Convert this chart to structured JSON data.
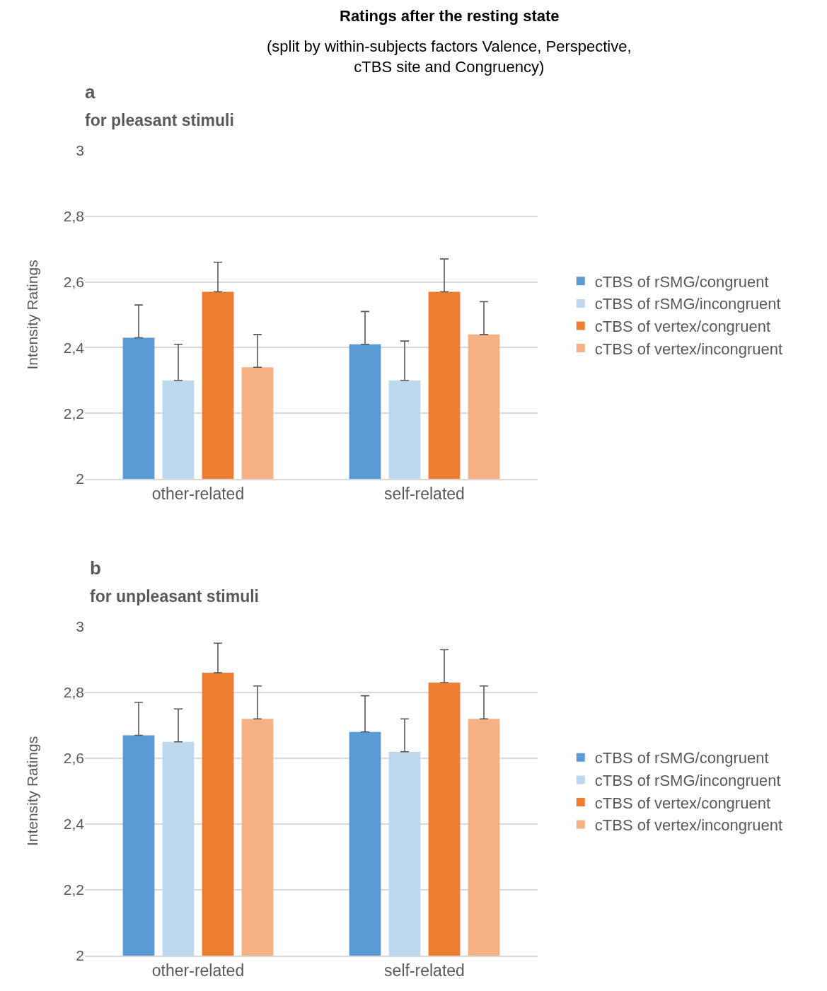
{
  "chart_data": [
    {
      "type": "bar",
      "title": "a",
      "subtitle": "for pleasant stimuli",
      "ylabel": "Intensity Ratings",
      "annotations": [
        "Ratings after the resting state",
        "(split by within-subjects factors Valence, Perspective,\ncTBS site and Congruency)"
      ],
      "categories": [
        "other-related",
        "self-related"
      ],
      "series": [
        {
          "name": "cTBS of rSMG/congruent",
          "color": "#5b9bd5",
          "values": [
            2.43,
            2.41
          ],
          "errors": [
            [
              2.43,
              2.53
            ],
            [
              2.41,
              2.51
            ]
          ]
        },
        {
          "name": "cTBS of rSMG/incongruent",
          "color": "#bdd7ee",
          "values": [
            2.3,
            2.3
          ],
          "errors": [
            [
              2.3,
              2.41
            ],
            [
              2.3,
              2.42
            ]
          ]
        },
        {
          "name": "cTBS of vertex/congruent",
          "color": "#ed7d31",
          "values": [
            2.57,
            2.57
          ],
          "errors": [
            [
              2.57,
              2.66
            ],
            [
              2.57,
              2.67
            ]
          ]
        },
        {
          "name": "cTBS of vertex/incongruent",
          "color": "#f4b183",
          "values": [
            2.34,
            2.44
          ],
          "errors": [
            [
              2.34,
              2.44
            ],
            [
              2.44,
              2.54
            ]
          ]
        }
      ],
      "ylim": [
        2,
        3
      ],
      "yticks": [
        2,
        {
          "value": 2.2,
          "label": "2,2"
        },
        {
          "value": 2.4,
          "label": "2,4"
        },
        {
          "value": 2.6,
          "label": "2,6"
        },
        {
          "value": 2.8,
          "label": "2,8"
        },
        3
      ],
      "grid": "y",
      "legend": "right"
    },
    {
      "type": "bar",
      "title": "b",
      "subtitle": "for unpleasant stimuli",
      "ylabel": "Intensity Ratings",
      "categories": [
        "other-related",
        "self-related"
      ],
      "series": [
        {
          "name": "cTBS of rSMG/congruent",
          "color": "#5b9bd5",
          "values": [
            2.67,
            2.68
          ],
          "errors": [
            [
              2.67,
              2.77
            ],
            [
              2.68,
              2.79
            ]
          ]
        },
        {
          "name": "cTBS of rSMG/incongruent",
          "color": "#bdd7ee",
          "values": [
            2.65,
            2.62
          ],
          "errors": [
            [
              2.65,
              2.75
            ],
            [
              2.62,
              2.72
            ]
          ]
        },
        {
          "name": "cTBS of vertex/congruent",
          "color": "#ed7d31",
          "values": [
            2.86,
            2.83
          ],
          "errors": [
            [
              2.86,
              2.95
            ],
            [
              2.83,
              2.93
            ]
          ]
        },
        {
          "name": "cTBS of vertex/incongruent",
          "color": "#f4b183",
          "values": [
            2.72,
            2.72
          ],
          "errors": [
            [
              2.72,
              2.82
            ],
            [
              2.72,
              2.82
            ]
          ]
        }
      ],
      "ylim": [
        2,
        3
      ],
      "yticks": [
        2,
        {
          "value": 2.2,
          "label": "2,2"
        },
        {
          "value": 2.4,
          "label": "2,4"
        },
        {
          "value": 2.6,
          "label": "2,6"
        },
        {
          "value": 2.8,
          "label": "2,8"
        },
        3
      ],
      "grid": "y",
      "legend": "right"
    }
  ]
}
